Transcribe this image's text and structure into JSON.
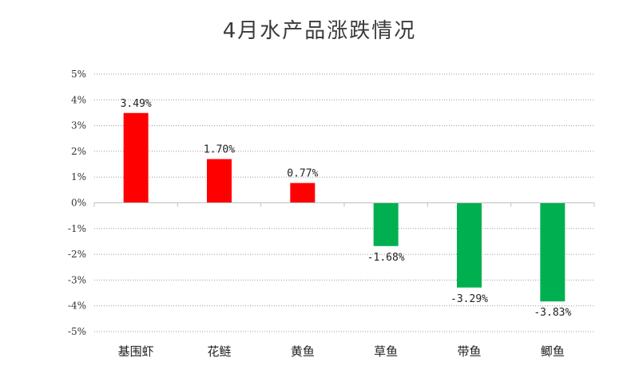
{
  "chart_data": {
    "type": "bar",
    "title": "4月水产品涨跌情况",
    "categories": [
      "基围虾",
      "花鲢",
      "黄鱼",
      "草鱼",
      "带鱼",
      "鲫鱼"
    ],
    "values": [
      3.49,
      1.7,
      0.77,
      -1.68,
      -3.29,
      -3.83
    ],
    "data_labels": [
      "3.49%",
      "1.70%",
      "0.77%",
      "-1.68%",
      "-3.29%",
      "-3.83%"
    ],
    "y_ticks": [
      5,
      4,
      3,
      2,
      1,
      0,
      -1,
      -2,
      -3,
      -4,
      -5
    ],
    "y_tick_labels": [
      "5%",
      "4%",
      "3%",
      "2%",
      "1%",
      "0%",
      "-1%",
      "-2%",
      "-3%",
      "-4%",
      "-5%"
    ],
    "ylim": [
      -5,
      5
    ],
    "xlabel": "",
    "ylabel": "",
    "grid": true,
    "legend": "none",
    "colors": {
      "positive": "#ff0000",
      "negative": "#00b050",
      "grid": "#9a9a9a",
      "axis": "#bfbfbf"
    }
  }
}
